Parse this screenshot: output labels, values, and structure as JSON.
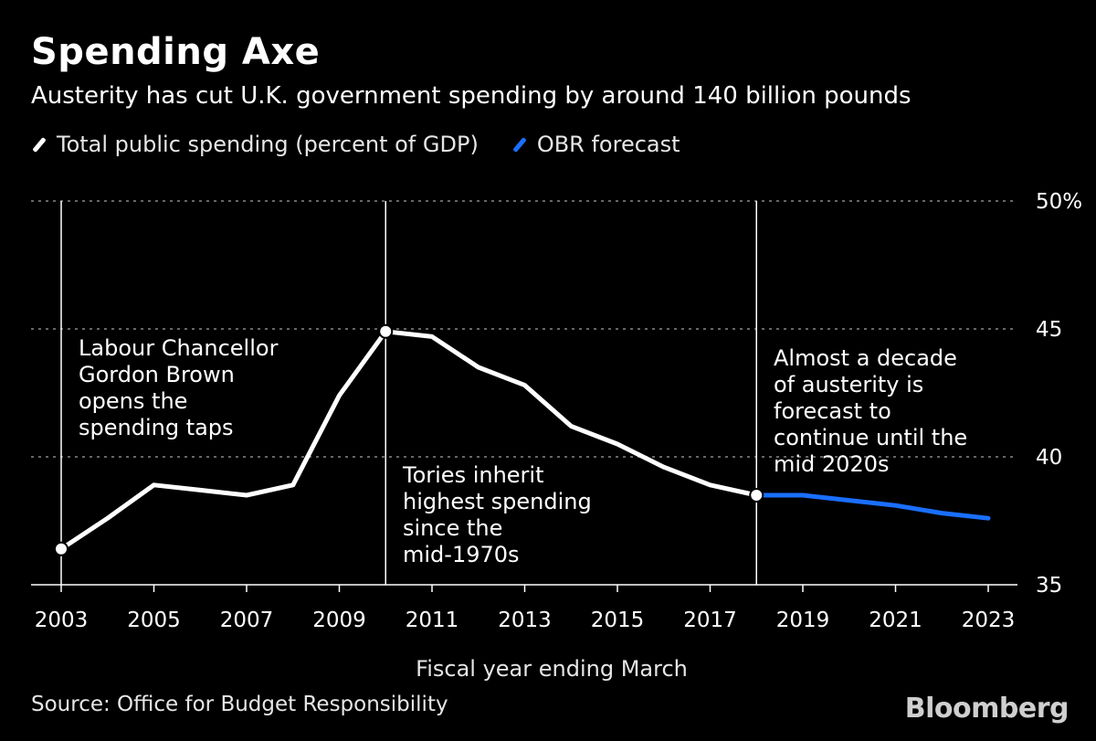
{
  "header": {
    "title": "Spending Axe",
    "subtitle": "Austerity has cut U.K. government spending by around 140 billion pounds"
  },
  "legend": [
    {
      "label": "Total public spending (percent of GDP)",
      "color": "#ffffff"
    },
    {
      "label": "OBR forecast",
      "color": "#1a6fff"
    }
  ],
  "footer": {
    "source": "Source: Office for Budget Responsibility",
    "brand": "Bloomberg"
  },
  "chart_data": {
    "type": "line",
    "xlabel": "Fiscal year ending March",
    "ylabel": "",
    "xlim": [
      2003,
      2023
    ],
    "ylim": [
      35,
      50
    ],
    "yticks": [
      {
        "value": 50,
        "label": "50%"
      },
      {
        "value": 45,
        "label": "45"
      },
      {
        "value": 40,
        "label": "40"
      },
      {
        "value": 35,
        "label": "35"
      }
    ],
    "xticks": [
      2003,
      2005,
      2007,
      2009,
      2011,
      2013,
      2015,
      2017,
      2019,
      2021,
      2023
    ],
    "grid": true,
    "series": [
      {
        "name": "Total public spending (percent of GDP)",
        "color": "#ffffff",
        "x": [
          2003,
          2004,
          2005,
          2006,
          2007,
          2008,
          2009,
          2010,
          2011,
          2012,
          2013,
          2014,
          2015,
          2016,
          2017,
          2018
        ],
        "y": [
          36.4,
          37.6,
          38.9,
          38.7,
          38.5,
          38.9,
          42.4,
          44.9,
          44.7,
          43.5,
          42.8,
          41.2,
          40.5,
          39.6,
          38.9,
          38.5
        ]
      },
      {
        "name": "OBR forecast",
        "color": "#1a6fff",
        "x": [
          2018,
          2019,
          2020,
          2021,
          2022,
          2023
        ],
        "y": [
          38.5,
          38.5,
          38.3,
          38.1,
          37.8,
          37.6
        ]
      }
    ],
    "markers": [
      {
        "x": 2003,
        "y": 36.4
      },
      {
        "x": 2010,
        "y": 44.9
      },
      {
        "x": 2018,
        "y": 38.5
      }
    ],
    "vlines": [
      2003,
      2010,
      2018
    ],
    "annotations": [
      {
        "lines": [
          "Labour Chancellor",
          "Gordon Brown",
          "opens the",
          "spending taps"
        ]
      },
      {
        "lines": [
          "Tories inherit",
          "highest spending",
          "since the",
          "mid-1970s"
        ]
      },
      {
        "lines": [
          "Almost a decade",
          "of austerity is",
          "forecast to",
          "continue until the",
          "mid 2020s"
        ]
      }
    ]
  }
}
